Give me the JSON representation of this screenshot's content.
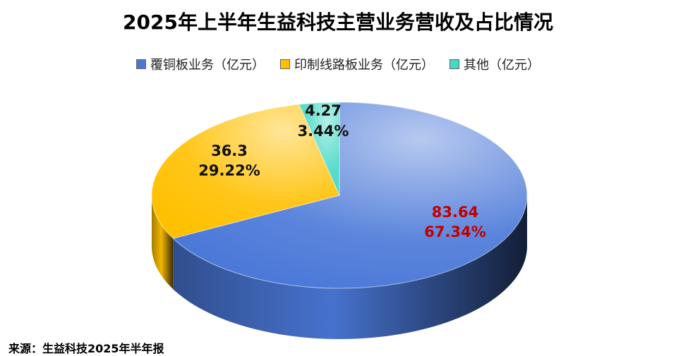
{
  "chart_data": {
    "type": "pie",
    "title": "2025年上半年生益科技主营业务营收及占比情况",
    "categories": [
      "覆铜板业务（亿元）",
      "印制线路板业务（亿元）",
      "其他（亿元）"
    ],
    "values": [
      83.64,
      36.3,
      4.27
    ],
    "percents": [
      67.34,
      29.22,
      3.44
    ],
    "percent_labels": [
      "67.34%",
      "29.22%",
      "3.44%"
    ],
    "colors": [
      "#4a78d8",
      "#ffc000",
      "#48d8c6"
    ],
    "source": "来源：生益科技2025年半年报"
  }
}
